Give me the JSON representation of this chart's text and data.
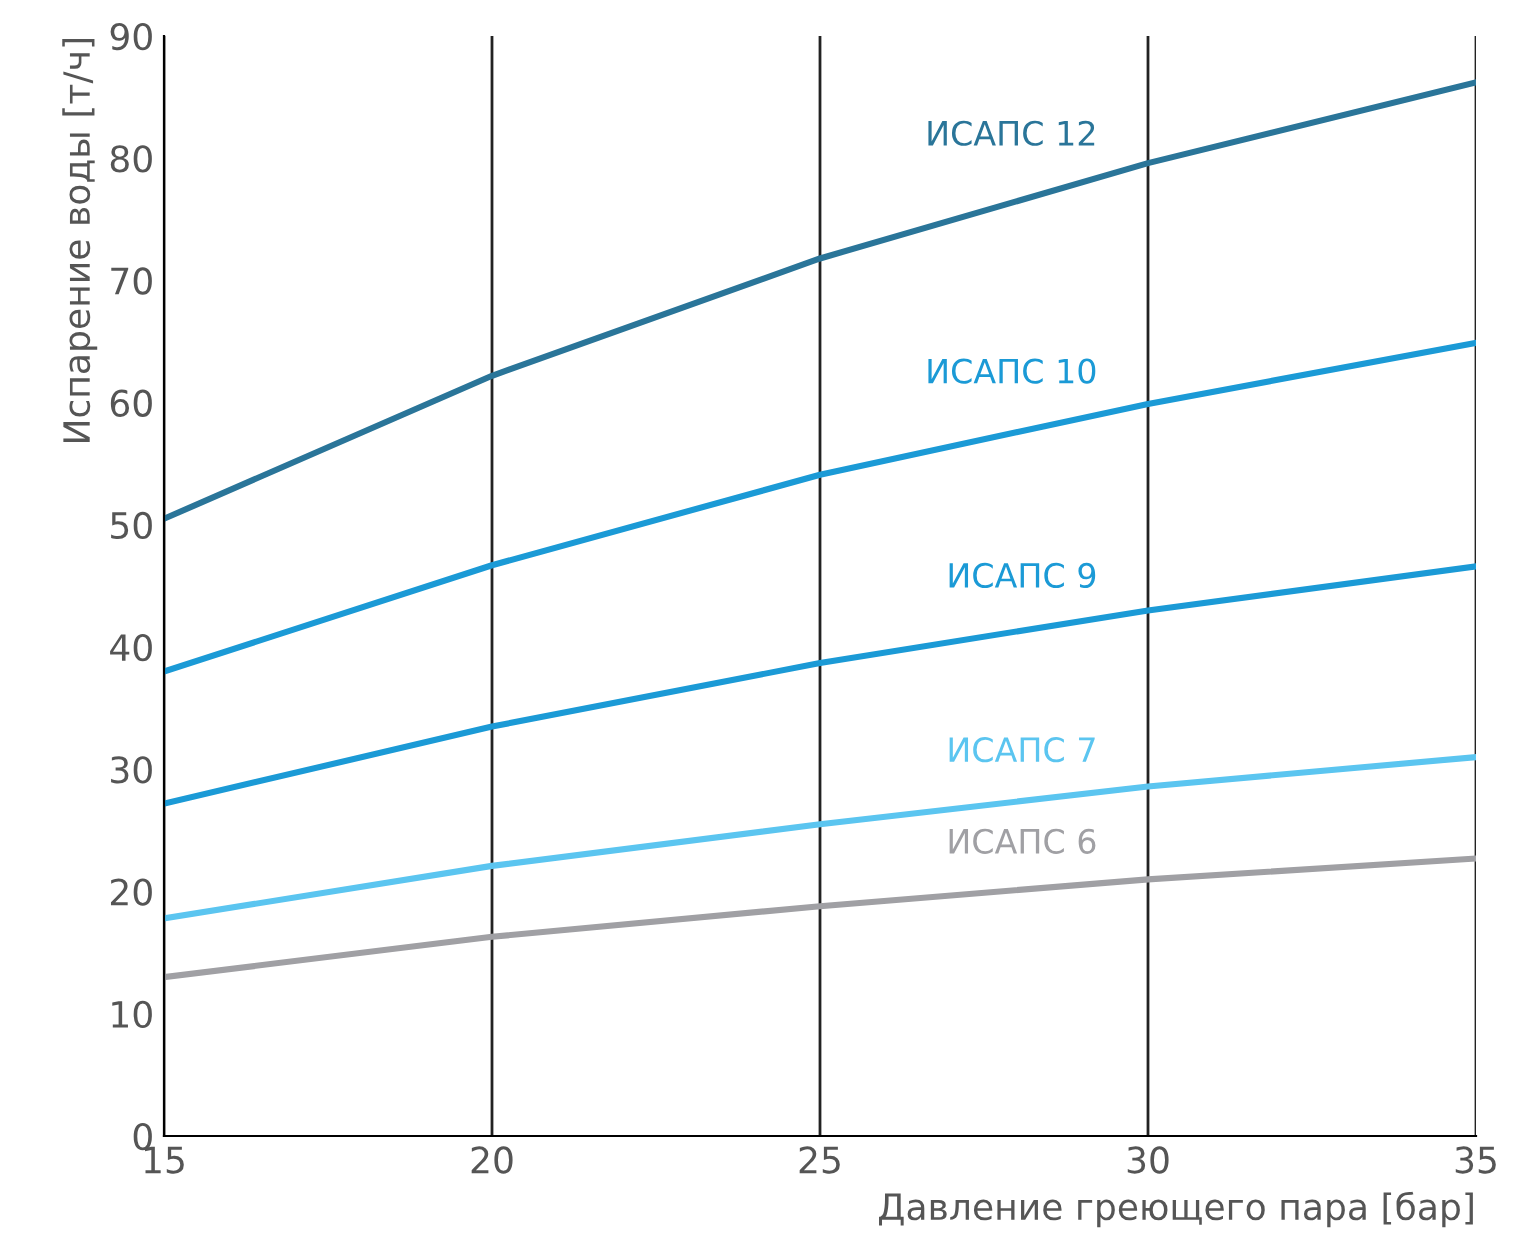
{
  "chart_data": {
    "type": "line",
    "xlabel": "Давление греющего пара [бар]",
    "ylabel": "Испарение воды [т/ч]",
    "x": [
      15,
      20,
      25,
      30,
      35
    ],
    "series": [
      {
        "name": "ИСАПС 12",
        "color": "#2a7599",
        "values": [
          50.5,
          62.2,
          71.8,
          79.6,
          86.2
        ]
      },
      {
        "name": "ИСАПС 10",
        "color": "#1b9ad6",
        "values": [
          38,
          46.7,
          54.1,
          59.9,
          64.9
        ]
      },
      {
        "name": "ИСАПС 9",
        "color": "#1b9ad6",
        "values": [
          27.2,
          33.5,
          38.7,
          43.0,
          46.6
        ]
      },
      {
        "name": "ИСАПС 7",
        "color": "#5bc5f0",
        "values": [
          17.8,
          22.1,
          25.5,
          28.6,
          31.0
        ]
      },
      {
        "name": "ИСАПС 6",
        "color": "#a0a0a4",
        "values": [
          13.0,
          16.3,
          18.8,
          21.0,
          22.7
        ]
      }
    ],
    "xlim": [
      15,
      35
    ],
    "xticks": [
      15,
      20,
      25,
      30,
      35
    ],
    "ylim": [
      0,
      90
    ],
    "yticks": [
      0,
      10,
      20,
      30,
      40,
      50,
      60,
      70,
      80,
      90
    ],
    "grid": "x",
    "legend": false,
    "marker": "none",
    "line_style": "solid"
  }
}
